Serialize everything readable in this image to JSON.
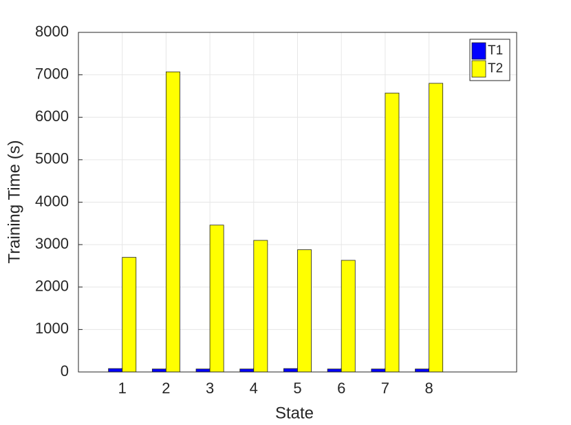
{
  "chart_data": {
    "type": "bar",
    "x": [
      1,
      2,
      3,
      4,
      5,
      6,
      7,
      8
    ],
    "series": [
      {
        "name": "T1",
        "color": "#0000ff",
        "values": [
          80,
          70,
          70,
          70,
          80,
          70,
          70,
          70
        ]
      },
      {
        "name": "T2",
        "color": "#ffff00",
        "values": [
          2700,
          7070,
          3460,
          3100,
          2880,
          2630,
          6570,
          6800
        ]
      }
    ],
    "xlabel": "State",
    "ylabel": "Training Time (s)",
    "xlim": [
      0,
      10
    ],
    "xticks": [
      1,
      2,
      3,
      4,
      5,
      6,
      7,
      8
    ],
    "ylim": [
      0,
      8000
    ],
    "yticks": [
      0,
      1000,
      2000,
      3000,
      4000,
      5000,
      6000,
      7000,
      8000
    ],
    "grid": true,
    "legend": "top-right"
  }
}
